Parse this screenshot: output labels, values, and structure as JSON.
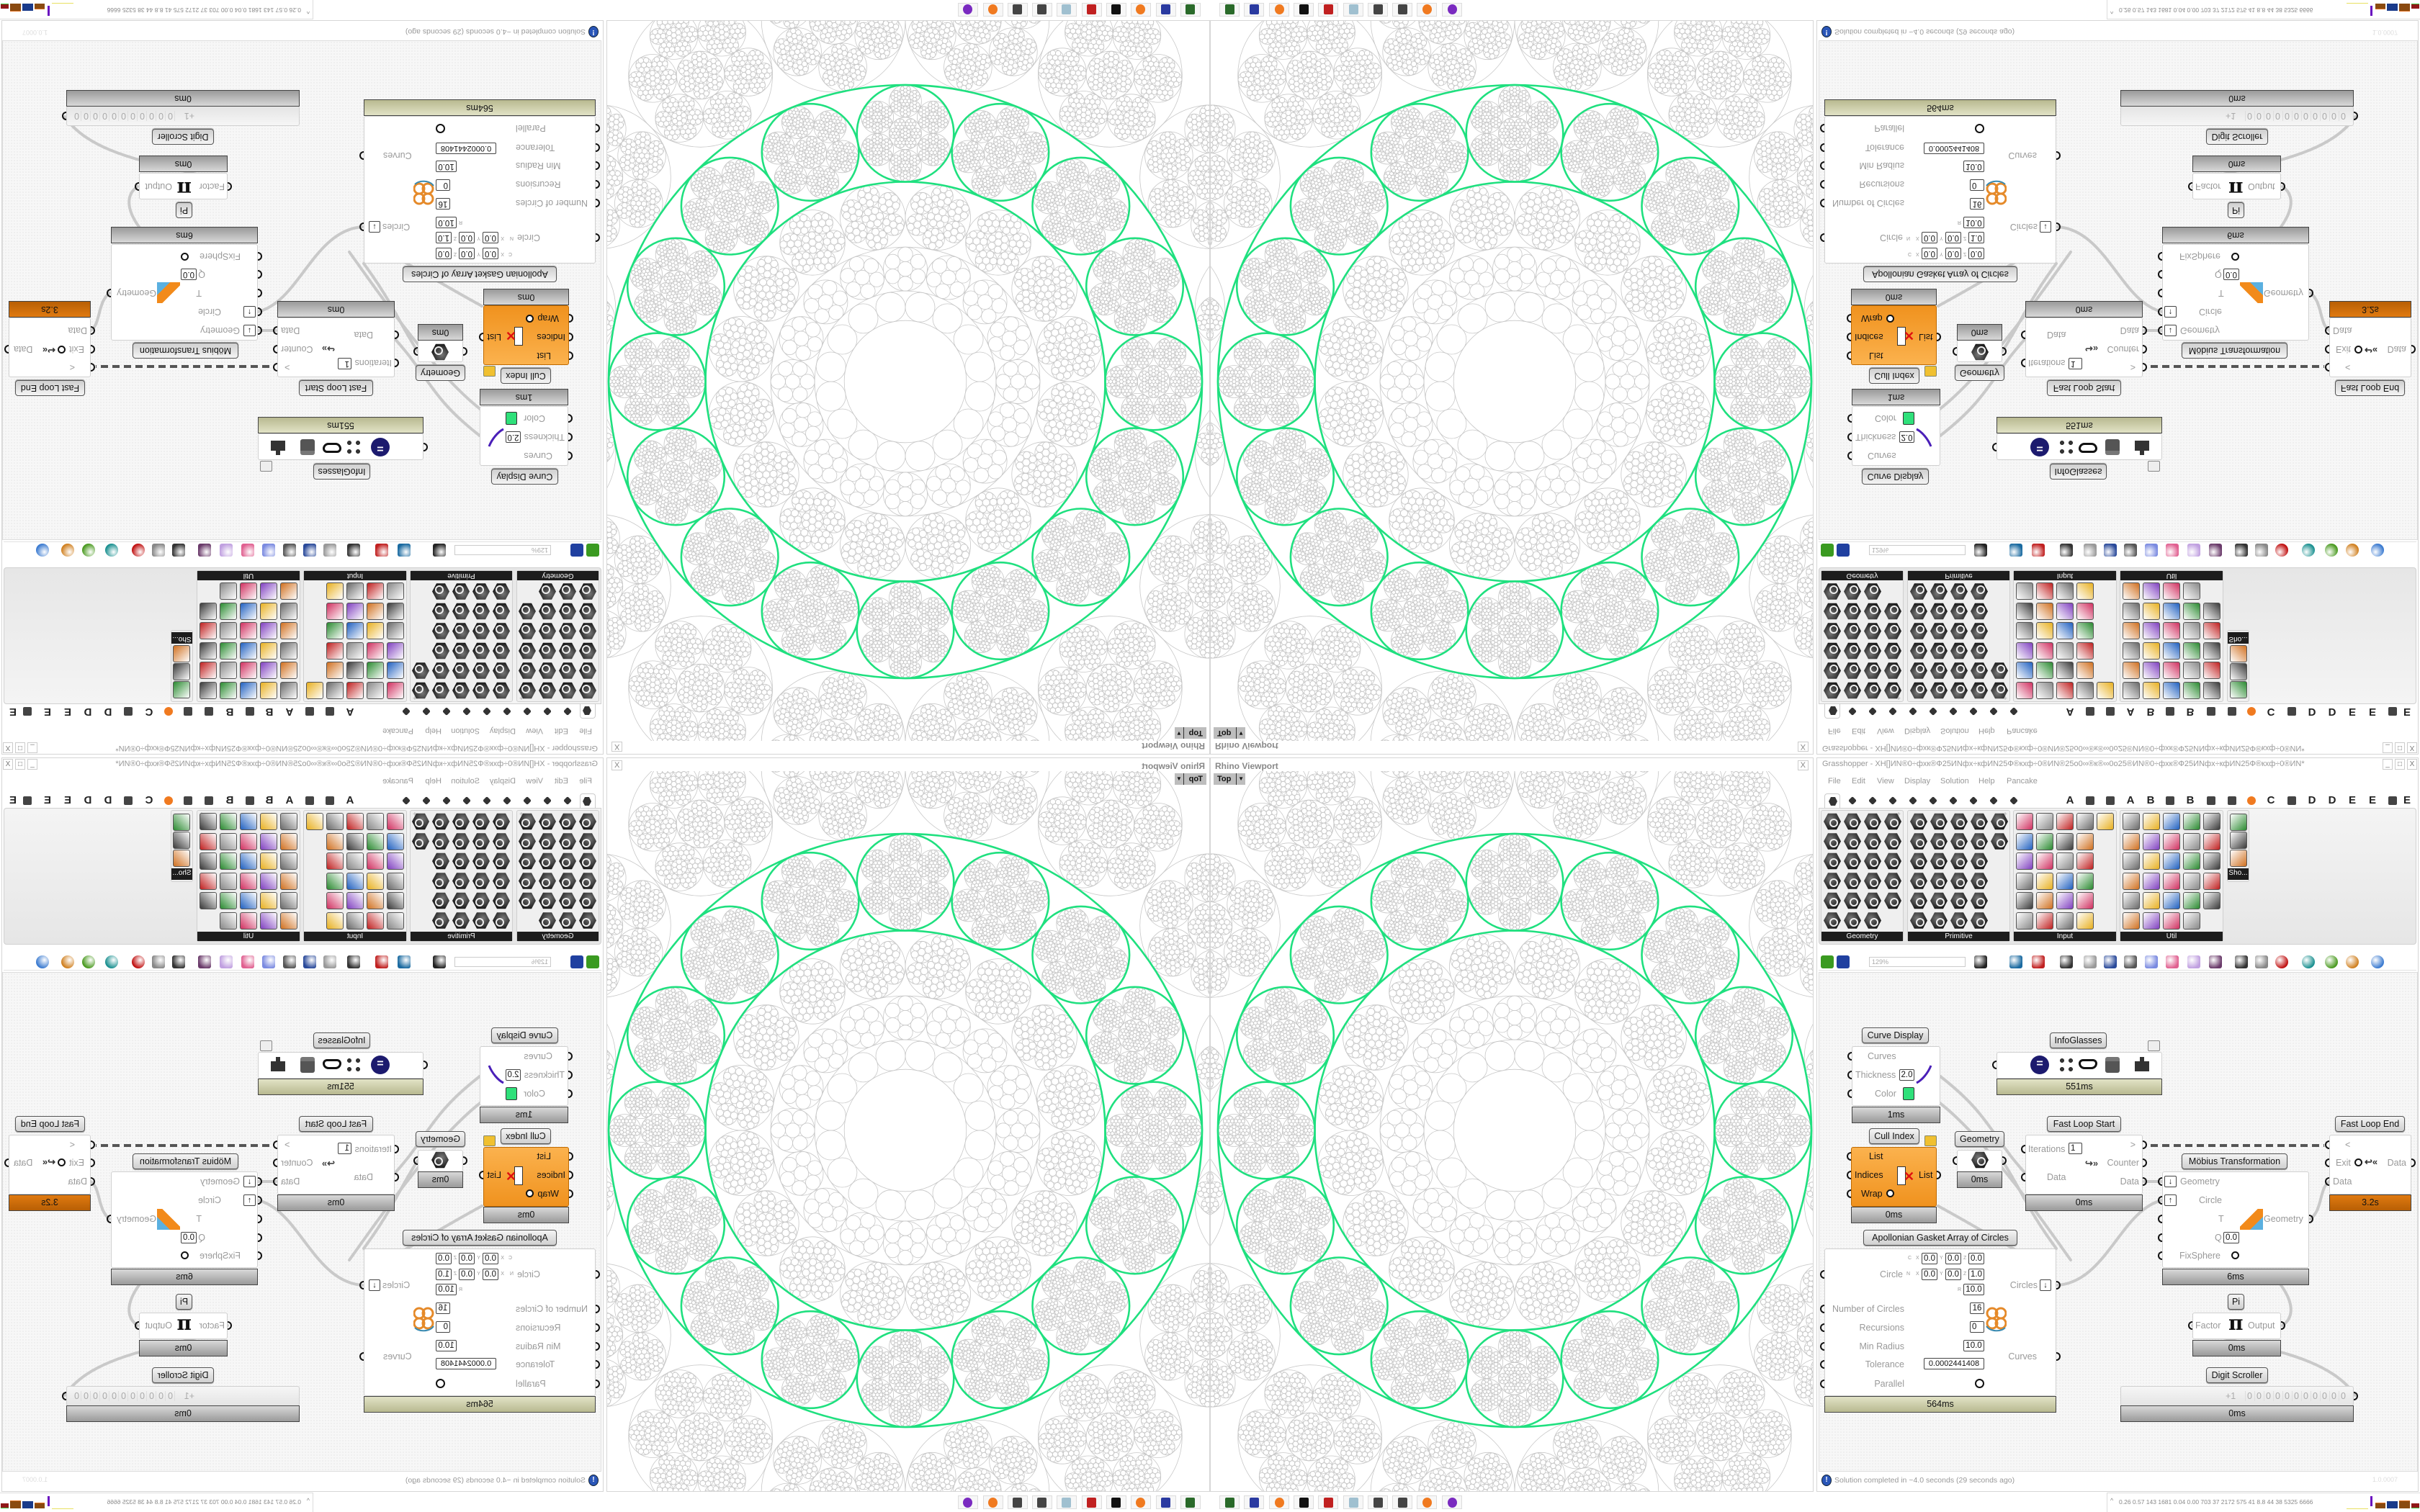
{
  "viewport": {
    "title": "Rhino Viewport",
    "view": "Top",
    "close": "X"
  },
  "grasshopper": {
    "title": "Grasshopper - XH[]ИN®0÷фхк®Ф25ИNфх÷кфИN25Ф®кхф÷0®ИN®25о0∞®к®∞0о25®ИN®0÷фхк®Ф25ИNфх÷кфИN25Ф®кхф÷0®ИN*",
    "window_buttons": [
      "_",
      "□",
      "X"
    ],
    "menu": [
      "File",
      "Edit",
      "View",
      "Display",
      "Solution",
      "Help",
      "Pancake"
    ],
    "tabs_icons": [
      "params-tab-icon",
      "maths-tab-icon",
      "sets-tab-icon",
      "vector-tab-icon",
      "curve-tab-icon",
      "surface-tab-icon",
      "mesh-tab-icon",
      "intersect-tab-icon",
      "transform-tab-icon",
      "display-tab-icon"
    ],
    "tabs_extra": [
      {
        "text": "A"
      },
      {
        "icon": "crystal-tab-icon"
      },
      {
        "icon": "gear-tab-icon"
      },
      {
        "text": "A"
      },
      {
        "text": "B"
      },
      {
        "icon": "mountain-tab-icon"
      },
      {
        "text": "B"
      },
      {
        "icon": "shield-tab-icon"
      },
      {
        "icon": "grid-tab-icon"
      },
      {
        "icon": "orange-circle-tab-icon"
      },
      {
        "text": "C"
      },
      {
        "icon": "bird-tab-icon"
      },
      {
        "text": "D"
      },
      {
        "text": "D"
      },
      {
        "text": "E"
      },
      {
        "text": "E"
      },
      {
        "icon": "dotted-square-tab-icon"
      },
      {
        "text": "E"
      }
    ],
    "panels": [
      {
        "label": "Geometry",
        "icons": [
          "box-icon",
          "line-icon",
          "point-icon",
          "spiral-icon",
          "cross-icon",
          "surface-icon",
          "brep-icon",
          "transform-icon",
          "vector-icon",
          "rectangle-icon",
          "text-icon",
          "curve-icon",
          "circle-icon",
          "box3d-icon",
          "mesh-icon",
          "field-icon",
          "arc-icon",
          "sheet-icon",
          "twisted-box-icon",
          "pointcloud-icon",
          "plane-icon",
          "sphere-icon",
          "magnet-icon"
        ]
      },
      {
        "label": "Primitive",
        "icons": [
          "boolean-icon",
          "star-icon",
          "matrix-icon",
          "domain-icon",
          "file-icon",
          "shape-icon",
          "gradient-icon",
          "time-icon",
          "snapshot-icon",
          "data-path-icon",
          "path-icon",
          "unicode-icon",
          "hatch-icon",
          "material-icon",
          "integer-icon",
          "interval-icon",
          "tree-icon",
          "colour-icon",
          "number-icon",
          "field-param-icon",
          "string-icon",
          "transform-param-icon",
          "text-param-icon",
          "id-icon",
          "shader-icon",
          "guid-icon"
        ]
      },
      {
        "label": "Input",
        "icons": [
          "import-icon",
          "panel-icon",
          "gradient-crystal-icon",
          "import-3dm-icon",
          "camera-icon",
          "graph-mapper-icon",
          "xyz-arrow-icon",
          "paint-icon",
          "xyz-icon",
          "toggle-icon",
          "color-picker-icon",
          "color-wheel-icon",
          "img-icon",
          "button-icon",
          "checker-icon",
          "curve-graph-icon",
          "pdb-icon",
          "bolt-icon",
          "calendar-icon",
          "orbit-icon",
          "shp-icon",
          "list-icon",
          "clock-icon",
          "swatch-icon",
          "id-tag-icon"
        ]
      },
      {
        "label": "Util",
        "icons": [
          "cherry-icon",
          "horseshoe-icon",
          "arrow-right-icon",
          "c-icon",
          "a-icon",
          "play-icon",
          "record-icon",
          "search-icon",
          "spiral-util-icon",
          "cd-icon",
          "axes-icon",
          "pencil-icon",
          "timer-icon",
          "seven-icon",
          "flask-icon",
          "tree-util-icon",
          "slider-icon",
          "egg-icon",
          "key-icon",
          "fx-icon",
          "ring-icon",
          "rotate-icon",
          "premiere-icon",
          "decimal-icon",
          "palette-icon",
          "abc-icon",
          "arrow-dark-icon",
          "gauge-icon",
          "x-util-icon"
        ]
      },
      {
        "label": "Sho...",
        "icons": [
          "glasses-icon",
          "glasses-alt-icon",
          "presentation-icon"
        ]
      }
    ],
    "toolbar": {
      "left_icons": [
        "open-file-icon",
        "save-icon"
      ],
      "zoom": "129%",
      "right_icons": [
        "zoom-extents-icon",
        "eye-icon",
        "sketch-icon",
        "sender-icon",
        "email-icon",
        "gha-icon",
        "window-icon",
        "search-s-icon",
        "package-icon",
        "bulb-icon",
        "wires-icon",
        "preview-off-icon",
        "preview-wire-icon",
        "preview-shaded-icon",
        "teal-icon",
        "green-icon",
        "orange-ball-icon",
        "blue-sphere-icon"
      ]
    },
    "components": {
      "curve_display": {
        "label": "Curve Display",
        "inputs": [
          "Curves",
          "Thickness",
          "Color"
        ],
        "thickness": "2.0",
        "time": "1ms"
      },
      "info_glasses": {
        "label": "InfoGlasses",
        "icons": [
          "equals-icon",
          "grid-icon",
          "glasses-icon",
          "cabinet-icon",
          "puzzle-icon"
        ],
        "time": "551ms"
      },
      "cull_index": {
        "label": "Cull Index",
        "inputs": [
          "List",
          "Indices",
          "Wrap"
        ],
        "output": "List",
        "time": "0ms"
      },
      "geometry": {
        "label": "Geometry",
        "time": "0ms"
      },
      "fast_loop_start": {
        "label": "Fast Loop Start",
        "inputs": [
          "Iterations",
          "Data"
        ],
        "iterations": "1",
        "outputs": [
          ">",
          "Counter",
          "Data"
        ],
        "time": "0ms"
      },
      "fast_loop_end": {
        "label": "Fast Loop End",
        "inputs": [
          "<",
          "Exit",
          "Data"
        ],
        "output": "Data",
        "time": "3.2s"
      },
      "mobius": {
        "label": "Möbius Transformation",
        "inputs": [
          "Geometry",
          "Circle",
          "T",
          "Q",
          "FixSphere"
        ],
        "q": "0.0",
        "output": "Geometry",
        "time": "6ms"
      },
      "apollonian": {
        "label": "Apollonian Gasket Array of Circles",
        "c_label": "C",
        "circle_label": "Circle",
        "n_label": "N",
        "r_label": "R",
        "axes": [
          "X",
          "Y",
          "Z"
        ],
        "c": [
          "0.0",
          "0.0",
          "0.0"
        ],
        "n": [
          "0.0",
          "0.0",
          "1.0"
        ],
        "r": "10.0",
        "inputs": [
          "Number of Circles",
          "Recursions",
          "Min Radius",
          "Tolerance",
          "Parallel"
        ],
        "values": [
          "16",
          "0",
          "10.0",
          "0.0002441408"
        ],
        "outputs": [
          "Circles",
          "Curves"
        ],
        "time": "564ms"
      },
      "pi": {
        "label": "Pi",
        "input": "Factor",
        "symbol": "π",
        "output": "Output",
        "time": "0ms"
      },
      "digit_scroller": {
        "label": "Digit Scroller",
        "sign": "+1",
        "digits": [
          "0",
          "0",
          "0",
          "0",
          "0",
          "0",
          "0",
          "0",
          "0",
          "0",
          "0"
        ],
        "time": "0ms"
      }
    },
    "status": {
      "message": "Solution completed in ~4.0 seconds (29 seconds ago)",
      "version": "1.0.0007"
    }
  },
  "taskbar": {
    "icons": [
      "installer-icon",
      "floppy-64-icon",
      "firefox-icon",
      "rhino-icon",
      "red-app-icon",
      "notepad-icon",
      "maze-icon",
      "maze-icon-2",
      "firefox-icon-2",
      "purple-app-icon"
    ],
    "stats": "0.26 0.57 143 1681 0.04 0.00 703 37 2172 575 41 8.8 44 38 5325 6666"
  },
  "colors": {
    "curve_green": "#1fe07f",
    "gasket_gray": "#c8c8c8",
    "cull_orange": "#f59a2a",
    "loop_end_orange": "#c96a08",
    "olive_bar": "#c6c7a3",
    "color_swatch": "#2fe07a"
  }
}
